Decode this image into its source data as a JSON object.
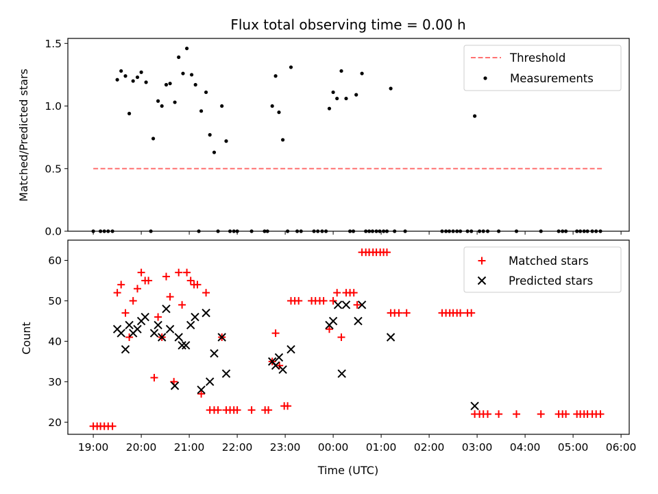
{
  "chart_data": [
    {
      "type": "scatter",
      "title": "Flux total observing time = 0.00 h",
      "xlabel": "",
      "ylabel": "Matched/Predicted stars",
      "xlim": [
        18.47,
        30.17
      ],
      "ylim": [
        0,
        1.54
      ],
      "yticks": [
        0,
        0.5,
        1.0,
        1.5
      ],
      "ytick_labels": [
        "0.0",
        "0.5",
        "1.0",
        "1.5"
      ],
      "legend_position": "upper right",
      "threshold": {
        "name": "Threshold",
        "value": 0.5,
        "x_range": [
          19.0,
          29.6
        ],
        "color": "#ff7070"
      },
      "series": [
        {
          "name": "Measurements",
          "marker": "dot",
          "color": "#000000",
          "points": [
            [
              19.0,
              0
            ],
            [
              19.15,
              0
            ],
            [
              19.23,
              0
            ],
            [
              19.31,
              0
            ],
            [
              19.4,
              0
            ],
            [
              19.5,
              1.21
            ],
            [
              19.58,
              1.28
            ],
            [
              19.67,
              1.24
            ],
            [
              19.75,
              0.94
            ],
            [
              19.83,
              1.2
            ],
            [
              19.92,
              1.23
            ],
            [
              20.0,
              1.27
            ],
            [
              20.1,
              1.19
            ],
            [
              20.25,
              0.74
            ],
            [
              20.35,
              1.04
            ],
            [
              20.43,
              1.0
            ],
            [
              20.52,
              1.17
            ],
            [
              20.6,
              1.18
            ],
            [
              20.7,
              1.03
            ],
            [
              20.78,
              1.39
            ],
            [
              20.87,
              1.26
            ],
            [
              20.95,
              1.46
            ],
            [
              21.05,
              1.25
            ],
            [
              21.13,
              1.17
            ],
            [
              21.25,
              0.96
            ],
            [
              21.35,
              1.11
            ],
            [
              21.43,
              0.77
            ],
            [
              21.52,
              0.63
            ],
            [
              21.68,
              1.0
            ],
            [
              21.77,
              0.72
            ],
            [
              20.2,
              0
            ],
            [
              21.2,
              0
            ],
            [
              21.6,
              0
            ],
            [
              21.85,
              0
            ],
            [
              21.93,
              0
            ],
            [
              22.0,
              0
            ],
            [
              22.3,
              0
            ],
            [
              22.57,
              0
            ],
            [
              22.63,
              0
            ],
            [
              22.73,
              1.0
            ],
            [
              22.8,
              1.24
            ],
            [
              22.87,
              0.95
            ],
            [
              22.95,
              0.73
            ],
            [
              23.12,
              1.31
            ],
            [
              23.05,
              0
            ],
            [
              23.25,
              0
            ],
            [
              23.33,
              0
            ],
            [
              23.6,
              0
            ],
            [
              23.68,
              0
            ],
            [
              23.77,
              0
            ],
            [
              23.85,
              0
            ],
            [
              23.92,
              0.98
            ],
            [
              24.0,
              1.11
            ],
            [
              24.08,
              1.06
            ],
            [
              24.17,
              1.28
            ],
            [
              24.27,
              1.06
            ],
            [
              24.48,
              1.09
            ],
            [
              24.6,
              1.26
            ],
            [
              24.35,
              0
            ],
            [
              24.42,
              0
            ],
            [
              24.68,
              0
            ],
            [
              24.75,
              0
            ],
            [
              24.82,
              0
            ],
            [
              24.9,
              0
            ],
            [
              24.97,
              0
            ],
            [
              25.05,
              0
            ],
            [
              25.12,
              0
            ],
            [
              25.2,
              1.14
            ],
            [
              25.28,
              0
            ],
            [
              25.5,
              0
            ],
            [
              26.27,
              0
            ],
            [
              26.35,
              0
            ],
            [
              26.42,
              0
            ],
            [
              26.5,
              0
            ],
            [
              26.58,
              0
            ],
            [
              26.65,
              0
            ],
            [
              26.8,
              0
            ],
            [
              26.88,
              0
            ],
            [
              26.95,
              0.92
            ],
            [
              27.05,
              0
            ],
            [
              27.13,
              0
            ],
            [
              27.22,
              0
            ],
            [
              27.45,
              0
            ],
            [
              27.82,
              0
            ],
            [
              28.33,
              0
            ],
            [
              28.7,
              0
            ],
            [
              28.78,
              0
            ],
            [
              28.85,
              0
            ],
            [
              29.08,
              0
            ],
            [
              29.15,
              0
            ],
            [
              29.23,
              0
            ],
            [
              29.3,
              0
            ],
            [
              29.4,
              0
            ],
            [
              29.48,
              0
            ],
            [
              29.57,
              0
            ]
          ]
        }
      ]
    },
    {
      "type": "scatter",
      "title": "",
      "xlabel": "Time (UTC)",
      "ylabel": "Count",
      "xlim": [
        18.47,
        30.17
      ],
      "ylim": [
        17,
        65
      ],
      "yticks": [
        20,
        30,
        40,
        50,
        60
      ],
      "ytick_labels": [
        "20",
        "30",
        "40",
        "50",
        "60"
      ],
      "xticks": [
        19,
        20,
        21,
        22,
        23,
        24,
        25,
        26,
        27,
        28,
        29,
        30
      ],
      "xtick_labels": [
        "19:00",
        "20:00",
        "21:00",
        "22:00",
        "23:00",
        "00:00",
        "01:00",
        "02:00",
        "03:00",
        "04:00",
        "05:00",
        "06:00"
      ],
      "legend_position": "upper right",
      "series": [
        {
          "name": "Matched stars",
          "marker": "plus",
          "color": "#ff0000",
          "points": [
            [
              19.0,
              19
            ],
            [
              19.08,
              19
            ],
            [
              19.15,
              19
            ],
            [
              19.23,
              19
            ],
            [
              19.31,
              19
            ],
            [
              19.4,
              19
            ],
            [
              19.5,
              52
            ],
            [
              19.58,
              54
            ],
            [
              19.67,
              47
            ],
            [
              19.75,
              41
            ],
            [
              19.83,
              50
            ],
            [
              19.92,
              53
            ],
            [
              20.0,
              57
            ],
            [
              20.08,
              55
            ],
            [
              20.15,
              55
            ],
            [
              20.27,
              31
            ],
            [
              20.35,
              46
            ],
            [
              20.43,
              41
            ],
            [
              20.52,
              56
            ],
            [
              20.6,
              51
            ],
            [
              20.68,
              30
            ],
            [
              20.78,
              57
            ],
            [
              20.85,
              49
            ],
            [
              20.95,
              57
            ],
            [
              21.03,
              55
            ],
            [
              21.1,
              54
            ],
            [
              21.17,
              54
            ],
            [
              21.25,
              27
            ],
            [
              21.35,
              52
            ],
            [
              21.43,
              23
            ],
            [
              21.52,
              23
            ],
            [
              21.6,
              23
            ],
            [
              21.68,
              41
            ],
            [
              21.77,
              23
            ],
            [
              21.85,
              23
            ],
            [
              21.93,
              23
            ],
            [
              22.0,
              23
            ],
            [
              22.3,
              23
            ],
            [
              22.58,
              23
            ],
            [
              22.65,
              23
            ],
            [
              22.73,
              35
            ],
            [
              22.8,
              42
            ],
            [
              22.88,
              34
            ],
            [
              22.98,
              24
            ],
            [
              23.05,
              24
            ],
            [
              23.12,
              50
            ],
            [
              23.2,
              50
            ],
            [
              23.28,
              50
            ],
            [
              23.55,
              50
            ],
            [
              23.63,
              50
            ],
            [
              23.72,
              50
            ],
            [
              23.8,
              50
            ],
            [
              23.92,
              43
            ],
            [
              24.0,
              50
            ],
            [
              24.08,
              52
            ],
            [
              24.17,
              41
            ],
            [
              24.27,
              52
            ],
            [
              24.35,
              52
            ],
            [
              24.43,
              52
            ],
            [
              24.5,
              49
            ],
            [
              24.6,
              62
            ],
            [
              24.68,
              62
            ],
            [
              24.75,
              62
            ],
            [
              24.83,
              62
            ],
            [
              24.9,
              62
            ],
            [
              24.98,
              62
            ],
            [
              25.05,
              62
            ],
            [
              25.12,
              62
            ],
            [
              25.2,
              47
            ],
            [
              25.28,
              47
            ],
            [
              25.37,
              47
            ],
            [
              25.53,
              47
            ],
            [
              26.27,
              47
            ],
            [
              26.35,
              47
            ],
            [
              26.43,
              47
            ],
            [
              26.5,
              47
            ],
            [
              26.58,
              47
            ],
            [
              26.65,
              47
            ],
            [
              26.8,
              47
            ],
            [
              26.88,
              47
            ],
            [
              26.95,
              22
            ],
            [
              27.05,
              22
            ],
            [
              27.13,
              22
            ],
            [
              27.22,
              22
            ],
            [
              27.45,
              22
            ],
            [
              27.82,
              22
            ],
            [
              28.33,
              22
            ],
            [
              28.7,
              22
            ],
            [
              28.78,
              22
            ],
            [
              28.85,
              22
            ],
            [
              29.08,
              22
            ],
            [
              29.15,
              22
            ],
            [
              29.23,
              22
            ],
            [
              29.3,
              22
            ],
            [
              29.4,
              22
            ],
            [
              29.48,
              22
            ],
            [
              29.57,
              22
            ]
          ]
        },
        {
          "name": "Predicted stars",
          "marker": "x",
          "color": "#000000",
          "points": [
            [
              19.5,
              43
            ],
            [
              19.58,
              42
            ],
            [
              19.67,
              38
            ],
            [
              19.75,
              44
            ],
            [
              19.83,
              42
            ],
            [
              19.92,
              43
            ],
            [
              20.0,
              45
            ],
            [
              20.08,
              46
            ],
            [
              20.27,
              42
            ],
            [
              20.35,
              44
            ],
            [
              20.43,
              41
            ],
            [
              20.52,
              48
            ],
            [
              20.6,
              43
            ],
            [
              20.7,
              29
            ],
            [
              20.78,
              41
            ],
            [
              20.85,
              39
            ],
            [
              20.93,
              39
            ],
            [
              21.03,
              44
            ],
            [
              21.12,
              46
            ],
            [
              21.25,
              28
            ],
            [
              21.35,
              47
            ],
            [
              21.43,
              30
            ],
            [
              21.52,
              37
            ],
            [
              21.68,
              41
            ],
            [
              21.77,
              32
            ],
            [
              22.73,
              35
            ],
            [
              22.8,
              34
            ],
            [
              22.87,
              36
            ],
            [
              22.95,
              33
            ],
            [
              23.12,
              38
            ],
            [
              23.92,
              44
            ],
            [
              24.0,
              45
            ],
            [
              24.1,
              49
            ],
            [
              24.18,
              32
            ],
            [
              24.27,
              49
            ],
            [
              24.52,
              45
            ],
            [
              24.6,
              49
            ],
            [
              25.2,
              41
            ],
            [
              26.95,
              24
            ]
          ]
        }
      ]
    }
  ]
}
